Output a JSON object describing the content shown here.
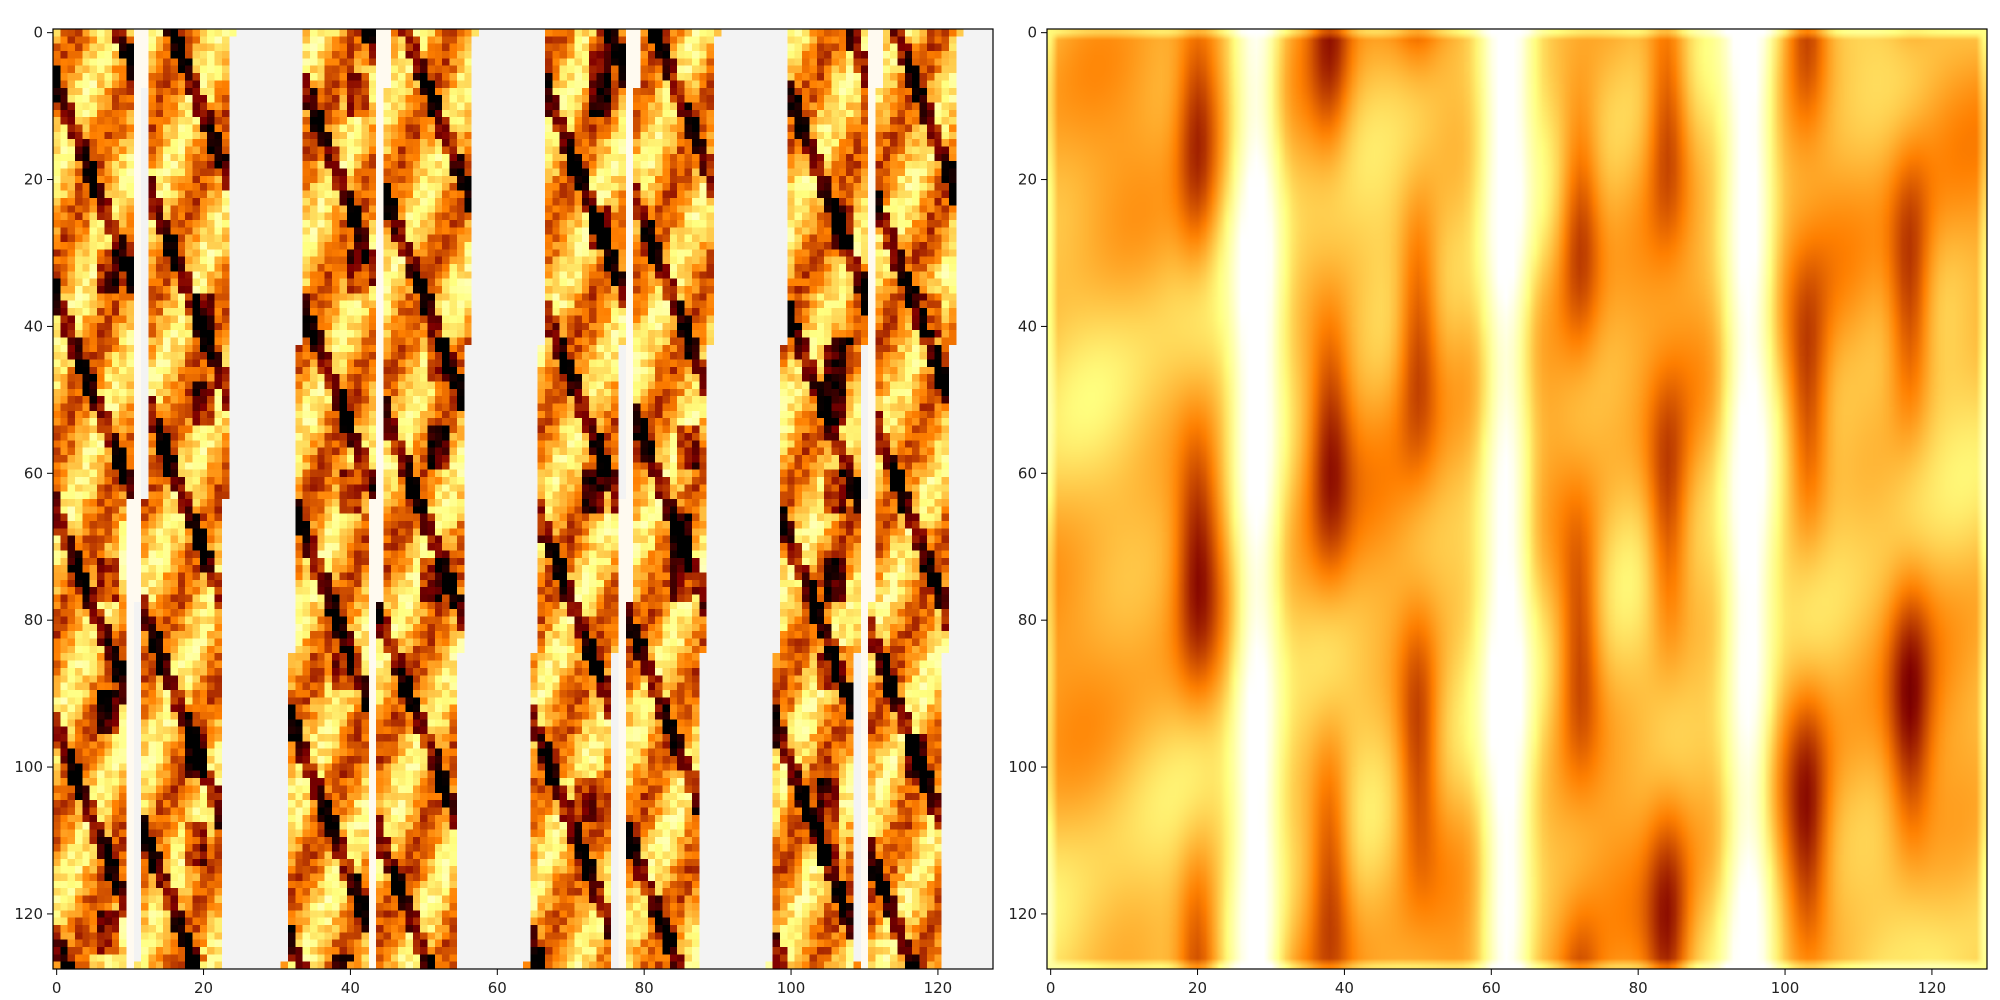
{
  "chart_data": [
    {
      "type": "heatmap",
      "panel": "left",
      "colormap": "afmhot_r",
      "background_color": "#f3f3f3",
      "x_range": [
        0,
        127
      ],
      "y_range": [
        0,
        127
      ],
      "y_inverted": true,
      "x_ticks": [
        "0",
        "20",
        "40",
        "60",
        "80",
        "100",
        "120"
      ],
      "y_ticks": [
        "0",
        "20",
        "40",
        "60",
        "80",
        "100",
        "120"
      ],
      "strips": [
        {
          "x0": 0,
          "x1": 11,
          "x0_bottom": -1,
          "x1_bottom": 10
        },
        {
          "x0": 13,
          "x1": 24,
          "x0_bottom": 11,
          "x1_bottom": 22
        },
        {
          "x0": 34,
          "x1": 44,
          "x0_bottom": 31,
          "x1_bottom": 42
        },
        {
          "x0": 45,
          "x1": 57,
          "x0_bottom": 43,
          "x1_bottom": 54
        },
        {
          "x0": 67,
          "x1": 78,
          "x0_bottom": 64,
          "x1_bottom": 75
        },
        {
          "x0": 79,
          "x1": 90,
          "x0_bottom": 77,
          "x1_bottom": 87
        },
        {
          "x0": 100,
          "x1": 111,
          "x0_bottom": 97,
          "x1_bottom": 108
        },
        {
          "x0": 112,
          "x1": 123,
          "x0_bottom": 109,
          "x1_bottom": 120
        }
      ],
      "white_seams": [
        11.5,
        44.5,
        78.5,
        111.5
      ]
    },
    {
      "type": "heatmap",
      "panel": "right",
      "colormap": "afmhot_r",
      "x_range": [
        0,
        127
      ],
      "y_range": [
        0,
        127
      ],
      "y_inverted": true,
      "x_ticks": [
        "0",
        "20",
        "40",
        "60",
        "80",
        "100",
        "120"
      ],
      "y_ticks": [
        "0",
        "20",
        "40",
        "60",
        "80",
        "100",
        "120"
      ],
      "light_bands": [
        28,
        62,
        95
      ],
      "dark_bands": [
        20,
        38,
        50,
        72,
        84,
        103,
        117
      ]
    }
  ]
}
